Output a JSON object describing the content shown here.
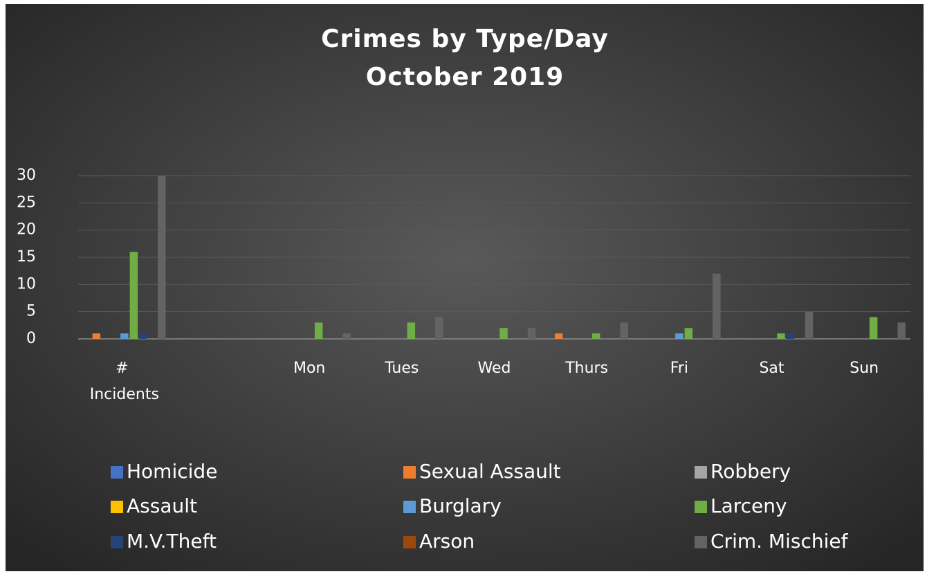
{
  "chart_data": {
    "type": "bar",
    "title": "Crimes by Type/Day",
    "subtitle": "October 2019",
    "categories": [
      "# Incidents",
      null,
      "Mon",
      "Tues",
      "Wed",
      "Thurs",
      "Fri",
      "Sat",
      "Sun"
    ],
    "series": [
      {
        "name": "Homicide",
        "color": "#4472c4",
        "values": [
          0,
          null,
          0,
          0,
          0,
          0,
          0,
          0,
          0
        ]
      },
      {
        "name": "Sexual Assault",
        "color": "#ed7d31",
        "values": [
          1,
          null,
          0,
          0,
          0,
          1,
          0,
          0,
          0
        ]
      },
      {
        "name": "Robbery",
        "color": "#a5a5a5",
        "values": [
          0,
          null,
          0,
          0,
          0,
          0,
          0,
          0,
          0
        ]
      },
      {
        "name": "Assault",
        "color": "#ffc000",
        "values": [
          0,
          null,
          0,
          0,
          0,
          0,
          0,
          0,
          0
        ]
      },
      {
        "name": "Burglary",
        "color": "#5b9bd5",
        "values": [
          1,
          null,
          0,
          0,
          0,
          0,
          1,
          0,
          0
        ]
      },
      {
        "name": "Larceny",
        "color": "#70ad47",
        "values": [
          16,
          null,
          3,
          3,
          2,
          1,
          2,
          1,
          4
        ]
      },
      {
        "name": "M.V.Theft",
        "color": "#264478",
        "values": [
          1,
          null,
          0,
          0,
          0,
          0,
          0,
          1,
          0
        ]
      },
      {
        "name": "Arson",
        "color": "#9e480e",
        "values": [
          0,
          null,
          0,
          0,
          0,
          0,
          0,
          0,
          0
        ]
      },
      {
        "name": "Crim. Mischief",
        "color": "#636363",
        "values": [
          30,
          null,
          1,
          4,
          2,
          3,
          12,
          5,
          3
        ]
      }
    ],
    "ylim": [
      0,
      30
    ],
    "yticks": [
      0,
      5,
      10,
      15,
      20,
      25,
      30
    ],
    "grid": true,
    "legend": "bottom"
  }
}
